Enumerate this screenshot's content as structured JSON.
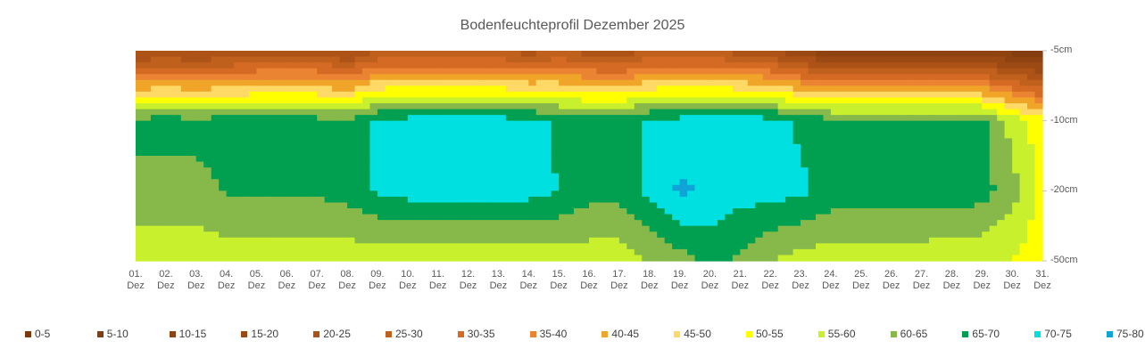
{
  "chart_data": {
    "type": "contour",
    "title": "Bodenfeuchteprofil Dezember 2025",
    "categories": [
      "01. Dez",
      "02. Dez",
      "03. Dez",
      "04. Dez",
      "05. Dez",
      "06. Dez",
      "07. Dez",
      "08. Dez",
      "09. Dez",
      "10. Dez",
      "11. Dez",
      "12. Dez",
      "13. Dez",
      "14. Dez",
      "15. Dez",
      "16. Dez",
      "17. Dez",
      "18. Dez",
      "19. Dez",
      "20. Dez",
      "21. Dez",
      "22. Dez",
      "23. Dez",
      "24. Dez",
      "25. Dez",
      "26. Dez",
      "27. Dez",
      "28. Dez",
      "29. Dez",
      "30. Dez",
      "31. Dez"
    ],
    "rows": [
      "-5cm",
      "-10cm",
      "-20cm",
      "-50cm"
    ],
    "values": [
      [
        18,
        20,
        18,
        20,
        22,
        22,
        22,
        18,
        25,
        25,
        25,
        25,
        25,
        22,
        25,
        22,
        20,
        25,
        25,
        25,
        22,
        20,
        15,
        10,
        10,
        10,
        10,
        10,
        10,
        8,
        5
      ],
      [
        67,
        67,
        67,
        67,
        67,
        67,
        67,
        66,
        71,
        72,
        72,
        72,
        72,
        72,
        69,
        68,
        68,
        71,
        72,
        73,
        73,
        72,
        69,
        67,
        67,
        67,
        67,
        67,
        67,
        58,
        52
      ],
      [
        63,
        63,
        63,
        65.5,
        66,
        66,
        66,
        67,
        70.5,
        72,
        72,
        72,
        72,
        72,
        70,
        67,
        67,
        71,
        76,
        74,
        72,
        72,
        71,
        68,
        68,
        68,
        68,
        68,
        67,
        62,
        53
      ],
      [
        57,
        57,
        57,
        57,
        57,
        57,
        57,
        57,
        56,
        56,
        56,
        56,
        56,
        56,
        57,
        57,
        57,
        60,
        63,
        66,
        64,
        60,
        58,
        57,
        57,
        57,
        57,
        56,
        56,
        55,
        52
      ]
    ],
    "levels": [
      0,
      5,
      10,
      15,
      20,
      25,
      30,
      35,
      40,
      45,
      50,
      55,
      60,
      65,
      70,
      75,
      80
    ],
    "bands": [
      {
        "name": "0-5",
        "color": "#7a3a0e"
      },
      {
        "name": "5-10",
        "color": "#843d0f"
      },
      {
        "name": "10-15",
        "color": "#8f4311"
      },
      {
        "name": "15-20",
        "color": "#9c4a14"
      },
      {
        "name": "20-25",
        "color": "#ad5318"
      },
      {
        "name": "25-30",
        "color": "#c0601d"
      },
      {
        "name": "30-35",
        "color": "#d46a23"
      },
      {
        "name": "35-40",
        "color": "#ea8433"
      },
      {
        "name": "40-45",
        "color": "#f0a428"
      },
      {
        "name": "45-50",
        "color": "#ffd966"
      },
      {
        "name": "50-55",
        "color": "#ffff00"
      },
      {
        "name": "55-60",
        "color": "#c8f02c"
      },
      {
        "name": "60-65",
        "color": "#86b94a"
      },
      {
        "name": "65-70",
        "color": "#00a050"
      },
      {
        "name": "70-75",
        "color": "#00e0e0"
      },
      {
        "name": "75-80",
        "color": "#0fa3d8"
      }
    ]
  }
}
